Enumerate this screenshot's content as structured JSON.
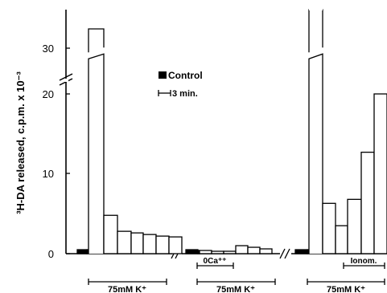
{
  "chart_data": {
    "type": "bar",
    "ylabel": "³H-DA  released,  c.p.m. x 10⁻³",
    "yticks": [
      "0",
      "10",
      "20",
      "30"
    ],
    "y_break": [
      24,
      30
    ],
    "ylim": [
      0,
      35
    ],
    "legend": {
      "control_label": "Control",
      "scale_label": "3 min."
    },
    "groups": [
      {
        "bars": [
          {
            "value": 0.5,
            "type": "control"
          },
          {
            "value": 0.5,
            "type": "control"
          },
          {
            "value": 32.5,
            "type": "stim"
          },
          {
            "value": 4.8,
            "type": "stim"
          },
          {
            "value": 2.8,
            "type": "stim"
          },
          {
            "value": 2.6,
            "type": "stim"
          },
          {
            "value": 2.4,
            "type": "stim"
          },
          {
            "value": 2.2,
            "type": "stim"
          },
          {
            "value": 2.1,
            "type": "stim"
          }
        ],
        "bracket_label": "75mM K⁺"
      },
      {
        "bars": [
          {
            "value": 0.5,
            "type": "control"
          },
          {
            "value": 0.4,
            "type": "control"
          },
          {
            "value": 0.4,
            "type": "stim"
          },
          {
            "value": 0.3,
            "type": "stim"
          },
          {
            "value": 0.3,
            "type": "stim"
          },
          {
            "value": 1.0,
            "type": "stim"
          },
          {
            "value": 0.8,
            "type": "stim"
          },
          {
            "value": 0.6,
            "type": "stim"
          }
        ],
        "bracket_label": "75mM K⁺",
        "inner_label": "0Ca⁺⁺"
      },
      {
        "bars": [
          {
            "value": 0.5,
            "type": "control"
          },
          {
            "value": 0.5,
            "type": "control"
          },
          {
            "value": 35,
            "type": "stim",
            "clipped": true
          },
          {
            "value": 6.3,
            "type": "stim"
          },
          {
            "value": 3.5,
            "type": "stim"
          },
          {
            "value": 6.8,
            "type": "stim"
          },
          {
            "value": 12.7,
            "type": "stim"
          },
          {
            "value": 20.0,
            "type": "stim"
          }
        ],
        "bracket_label": "75mM K⁺",
        "inner_label": "Ionom."
      }
    ]
  }
}
